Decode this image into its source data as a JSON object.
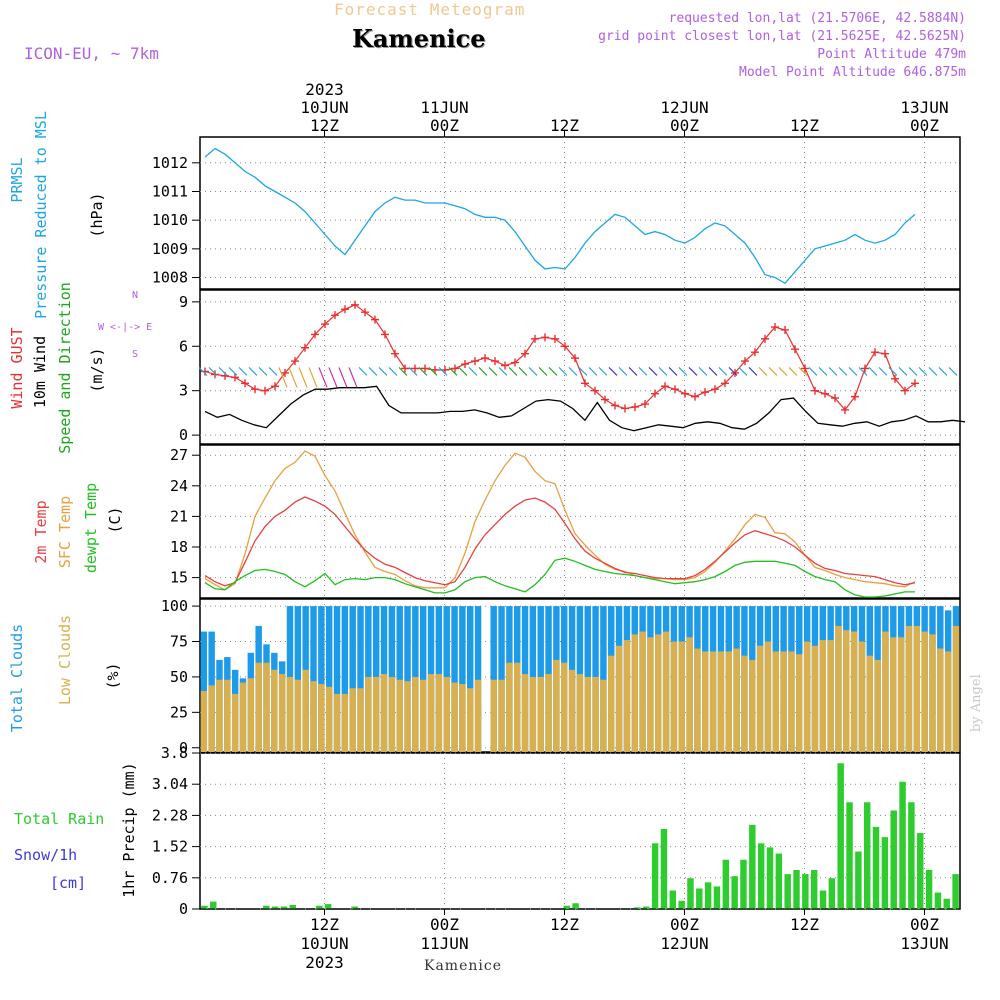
{
  "header": {
    "subtitle": "Forecast Meteogram",
    "location": "Kamenice",
    "model": "ICON-EU, ~ 7km",
    "requested": "requested lon,lat (21.5706E, 42.5884N)",
    "gridpoint": "grid point closest lon,lat (21.5625E, 42.5625N)",
    "altitude": "Point Altitude 479m",
    "model_altitude": "Model Point Altitude 646.875m"
  },
  "footer": {
    "location": "Kamenice",
    "watermark": "by Angel"
  },
  "colors": {
    "pressure": "#1ba6e8",
    "gust": "#e83030",
    "wind": "#000000",
    "windlabel": "#1fa51f",
    "t2m": "#e84040",
    "sfc": "#e8a040",
    "dewpt": "#20c020",
    "cloud_total": "#1e9be8",
    "cloud_low": "#d9b050",
    "precip": "#2ecc2e",
    "snow_label": "#3b3bdc",
    "header": "#b060e0",
    "subtitle": "#f0c890"
  },
  "chart_data": [
    {
      "type": "line",
      "panel": "pressure",
      "axis_labels": [
        "PRMSL",
        "Pressure Reduced to MSL",
        "(hPa)"
      ],
      "x_start": "2023-06-10 00Z",
      "x_step_hours": 1,
      "yticks": [
        1008,
        1009,
        1010,
        1011,
        1012
      ],
      "ylim": [
        1007.6,
        1012.9
      ],
      "series": [
        {
          "values": [
            1012.2,
            1012.5,
            1012.3,
            1012.0,
            1011.7,
            1011.5,
            1011.2,
            1011.0,
            1010.8,
            1010.6,
            1010.3,
            1009.9,
            1009.5,
            1009.1,
            1008.8,
            1009.3,
            1009.8,
            1010.3,
            1010.6,
            1010.8,
            1010.7,
            1010.7,
            1010.6,
            1010.6,
            1010.6,
            1010.5,
            1010.4,
            1010.2,
            1010.1,
            1010.1,
            1010.0,
            1009.6,
            1009.1,
            1008.6,
            1008.3,
            1008.35,
            1008.3,
            1008.7,
            1009.2,
            1009.6,
            1009.9,
            1010.2,
            1010.1,
            1009.8,
            1009.5,
            1009.6,
            1009.5,
            1009.3,
            1009.2,
            1009.4,
            1009.7,
            1009.9,
            1009.8,
            1009.5,
            1009.2,
            1008.7,
            1008.1,
            1008.0,
            1007.8,
            1008.2,
            1008.6,
            1009.0,
            1009.1,
            1009.2,
            1009.3,
            1009.5,
            1009.3,
            1009.2,
            1009.3,
            1009.5,
            1009.9,
            1010.2
          ]
        }
      ]
    },
    {
      "type": "line",
      "panel": "wind",
      "axis_labels": [
        "Wind GUST",
        "10m Wind",
        "Speed and Direction",
        "(m/s)"
      ],
      "compass": [
        "N",
        "W",
        "E",
        "S"
      ],
      "yticks": [
        0,
        3,
        6,
        9
      ],
      "ylim": [
        -0.6,
        9.8
      ],
      "series": [
        {
          "name": "Wind GUST",
          "values": [
            4.3,
            4.1,
            4.0,
            3.9,
            3.5,
            3.1,
            3.0,
            3.3,
            4.2,
            5.0,
            5.9,
            6.8,
            7.5,
            8.1,
            8.5,
            8.8,
            8.3,
            7.8,
            6.8,
            5.5,
            4.5,
            4.5,
            4.5,
            4.4,
            4.4,
            4.5,
            4.8,
            5.0,
            5.2,
            5.0,
            4.7,
            4.9,
            5.5,
            6.5,
            6.6,
            6.5,
            6.0,
            5.2,
            3.5,
            3.0,
            2.4,
            2.0,
            1.8,
            1.9,
            2.1,
            2.8,
            3.3,
            3.1,
            2.8,
            2.6,
            2.9,
            3.1,
            3.5,
            4.2,
            5.0,
            5.6,
            6.5,
            7.3,
            7.1,
            5.8,
            4.5,
            3.0,
            2.8,
            2.5,
            1.7,
            2.6,
            4.5,
            5.6,
            5.5,
            3.8,
            3.0,
            3.5
          ]
        },
        {
          "name": "10m Wind",
          "values": [
            1.6,
            1.2,
            1.4,
            1.0,
            0.7,
            0.5,
            1.3,
            2.1,
            2.7,
            3.1,
            3.1,
            3.2,
            3.2,
            3.2,
            3.3,
            2.0,
            1.5,
            1.5,
            1.5,
            1.5,
            1.6,
            1.6,
            1.7,
            1.5,
            1.2,
            1.3,
            1.8,
            2.3,
            2.4,
            2.3,
            1.8,
            1.0,
            2.2,
            1.0,
            0.5,
            0.3,
            0.5,
            0.7,
            0.6,
            0.5,
            0.8,
            0.9,
            0.8,
            0.5,
            0.4,
            0.8,
            1.5,
            2.4,
            2.5,
            1.6,
            0.8,
            0.7,
            0.6,
            0.8,
            0.9,
            0.6,
            0.9,
            1.0,
            1.3,
            0.9,
            0.9,
            1.0,
            0.9
          ]
        }
      ]
    },
    {
      "type": "line",
      "panel": "temperature",
      "axis_labels": [
        "2m Temp",
        "SFC Temp",
        "dewpt Temp",
        "(C)"
      ],
      "yticks": [
        15,
        18,
        21,
        24,
        27
      ],
      "ylim": [
        13.0,
        28.0
      ],
      "series": [
        {
          "name": "2m Temp",
          "values": [
            15.2,
            14.6,
            14.2,
            14.5,
            16.5,
            18.6,
            20.0,
            21.0,
            21.6,
            22.4,
            22.9,
            22.5,
            22.0,
            21.2,
            20.0,
            18.8,
            17.7,
            16.9,
            16.3,
            16.0,
            15.5,
            15.0,
            14.7,
            14.5,
            14.3,
            14.6,
            16.0,
            17.8,
            19.2,
            20.2,
            21.2,
            22.0,
            22.6,
            22.8,
            22.4,
            21.7,
            20.3,
            18.8,
            17.6,
            16.9,
            16.4,
            15.9,
            15.5,
            15.4,
            15.2,
            15.0,
            14.9,
            14.9,
            14.9,
            15.2,
            15.8,
            16.6,
            17.5,
            18.4,
            19.2,
            19.6,
            19.3,
            19.0,
            18.6,
            18.0,
            17.2,
            16.4,
            15.9,
            15.7,
            15.4,
            15.3,
            15.2,
            15.1,
            14.8,
            14.5,
            14.3,
            14.5
          ]
        },
        {
          "name": "SFC Temp",
          "values": [
            14.9,
            14.3,
            13.8,
            14.4,
            17.3,
            21.0,
            22.8,
            24.5,
            25.7,
            26.3,
            27.4,
            26.9,
            25.0,
            23.5,
            21.3,
            19.2,
            17.5,
            16.0,
            15.6,
            15.3,
            14.7,
            14.2,
            14.0,
            14.0,
            14.0,
            15.0,
            17.4,
            20.5,
            22.6,
            24.5,
            26.0,
            27.2,
            26.8,
            25.4,
            24.5,
            24.2,
            21.6,
            19.3,
            18.2,
            17.2,
            16.3,
            15.8,
            15.6,
            15.2,
            15.0,
            14.9,
            14.9,
            14.8,
            14.8,
            15.0,
            15.6,
            16.5,
            17.6,
            18.8,
            20.2,
            21.2,
            20.9,
            19.4,
            19.3,
            18.5,
            17.2,
            16.0,
            15.7,
            15.3,
            15.0,
            14.8,
            14.6,
            14.5,
            14.4,
            14.2,
            14.1,
            14.6
          ]
        },
        {
          "name": "dewpt Temp",
          "values": [
            14.5,
            13.9,
            13.8,
            14.6,
            15.2,
            15.7,
            15.8,
            15.6,
            15.3,
            14.6,
            14.1,
            14.7,
            15.4,
            14.3,
            14.8,
            14.9,
            14.8,
            15.0,
            15.0,
            14.8,
            14.4,
            14.1,
            13.8,
            13.5,
            13.5,
            13.8,
            14.6,
            15.0,
            15.1,
            14.6,
            14.2,
            13.9,
            13.6,
            14.3,
            15.3,
            16.7,
            16.9,
            16.6,
            16.2,
            15.8,
            15.6,
            15.4,
            15.3,
            15.2,
            15.0,
            14.8,
            14.6,
            14.4,
            14.5,
            14.6,
            14.8,
            15.1,
            15.6,
            16.2,
            16.5,
            16.6,
            16.6,
            16.6,
            16.4,
            16.2,
            15.6,
            15.1,
            14.8,
            14.6,
            13.8,
            13.3,
            13.1,
            13.1,
            13.2,
            13.4,
            13.6,
            13.6
          ]
        }
      ]
    },
    {
      "type": "bar",
      "panel": "clouds",
      "axis_labels": [
        "Total Clouds",
        "Low Clouds",
        "(%)"
      ],
      "yticks": [
        0,
        25,
        50,
        75,
        100
      ],
      "ylim": [
        -3,
        105
      ],
      "series": [
        {
          "name": "Total Clouds",
          "values": [
            82,
            82,
            62,
            64,
            55,
            49,
            67,
            86,
            73,
            67,
            61,
            100,
            100,
            100,
            100,
            100,
            100,
            100,
            100,
            100,
            100,
            100,
            100,
            100,
            100,
            100,
            100,
            100,
            100,
            100,
            100,
            100,
            100,
            100,
            100,
            100,
            0,
            100,
            100,
            100,
            100,
            100,
            100,
            100,
            100,
            100,
            100,
            100,
            100,
            100,
            100,
            100,
            100,
            100,
            100,
            100,
            100,
            100,
            100,
            100,
            100,
            100,
            100,
            100,
            100,
            100,
            100,
            100,
            100,
            100,
            100,
            100,
            100,
            100,
            100,
            100,
            100,
            100,
            100,
            100,
            100,
            100,
            100,
            100,
            100,
            100,
            100,
            100,
            100,
            100,
            100,
            100,
            100,
            100,
            100,
            97,
            100
          ]
        },
        {
          "name": "Low Clouds",
          "values": [
            40,
            44,
            48,
            48,
            38,
            46,
            49,
            60,
            60,
            55,
            52,
            50,
            48,
            55,
            47,
            45,
            43,
            38,
            38,
            42,
            42,
            50,
            50,
            52,
            50,
            48,
            47,
            50,
            48,
            52,
            52,
            50,
            46,
            45,
            42,
            48,
            0,
            48,
            48,
            60,
            60,
            52,
            50,
            50,
            52,
            62,
            60,
            55,
            52,
            50,
            50,
            48,
            65,
            72,
            76,
            80,
            82,
            78,
            80,
            82,
            75,
            75,
            78,
            70,
            68,
            68,
            68,
            68,
            70,
            65,
            62,
            72,
            75,
            68,
            68,
            68,
            66,
            75,
            72,
            76,
            76,
            86,
            83,
            82,
            75,
            65,
            62,
            82,
            78,
            78,
            86,
            86,
            82,
            80,
            70,
            68,
            86
          ]
        }
      ]
    },
    {
      "type": "bar",
      "panel": "precip",
      "axis_labels": [
        "Total Rain",
        "Snow/1h",
        "[cm]",
        "1hr Precip (mm)"
      ],
      "yticks": [
        0,
        0.76,
        1.52,
        2.28,
        3.04,
        3.8
      ],
      "ylim": [
        0,
        3.8
      ],
      "series": [
        {
          "name": "Total Rain",
          "values": [
            0.08,
            0.18,
            0,
            0,
            0,
            0,
            0,
            0.08,
            0.06,
            0.06,
            0.1,
            0,
            0,
            0.08,
            0.12,
            0,
            0,
            0.06,
            0,
            0,
            0,
            0,
            0,
            0,
            0,
            0,
            0,
            0,
            0,
            0,
            0,
            0,
            0,
            0,
            0,
            0,
            0,
            0,
            0,
            0,
            0,
            0.08,
            0.14,
            0,
            0,
            0,
            0,
            0,
            0,
            0.04,
            0.06,
            1.6,
            1.95,
            0.45,
            0.2,
            0.75,
            0.5,
            0.65,
            0.55,
            1.2,
            0.8,
            1.2,
            2.05,
            1.6,
            1.5,
            1.35,
            0.85,
            0.95,
            0.85,
            0.95,
            0.45,
            0.75,
            3.55,
            2.6,
            1.4,
            2.6,
            2.0,
            1.75,
            2.4,
            3.1,
            2.6,
            1.85,
            0.95,
            0.4,
            0.25,
            0.85
          ]
        }
      ]
    }
  ],
  "axes": {
    "top_labels": [
      {
        "h": 12,
        "lines": [
          "2023",
          "10JUN",
          "12Z"
        ]
      },
      {
        "h": 24,
        "lines": [
          "11JUN",
          "00Z"
        ]
      },
      {
        "h": 36,
        "lines": [
          "12Z"
        ]
      },
      {
        "h": 48,
        "lines": [
          "12JUN",
          "00Z"
        ]
      },
      {
        "h": 60,
        "lines": [
          "12Z"
        ]
      },
      {
        "h": 72,
        "lines": [
          "13JUN",
          "00Z"
        ]
      }
    ],
    "bottom_labels": [
      {
        "h": 12,
        "lines": [
          "12Z",
          "10JUN",
          "2023"
        ]
      },
      {
        "h": 24,
        "lines": [
          "00Z",
          "11JUN"
        ]
      },
      {
        "h": 36,
        "lines": [
          "12Z"
        ]
      },
      {
        "h": 48,
        "lines": [
          "00Z",
          "12JUN"
        ]
      },
      {
        "h": 60,
        "lines": [
          "12Z"
        ]
      },
      {
        "h": 72,
        "lines": [
          "00Z",
          "13JUN"
        ]
      }
    ]
  }
}
